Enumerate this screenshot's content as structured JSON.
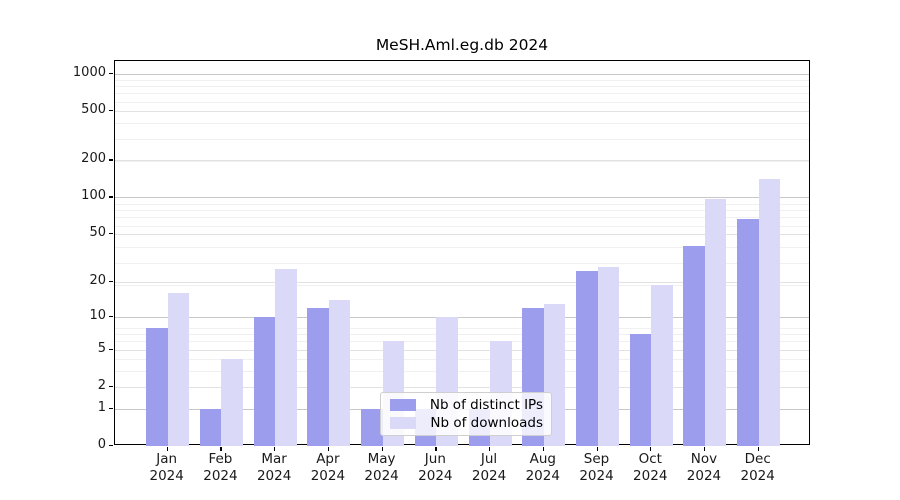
{
  "chart_data": {
    "type": "bar",
    "title": "MeSH.Aml.eg.db 2024",
    "categories": [
      "Jan",
      "Feb",
      "Mar",
      "Apr",
      "May",
      "Jun",
      "Jul",
      "Aug",
      "Sep",
      "Oct",
      "Nov",
      "Dec"
    ],
    "x_tick_second_line": "2024",
    "series": [
      {
        "name": "Nb of distinct IPs",
        "color": "#9d9dee",
        "values": [
          8,
          1,
          10,
          12,
          1,
          1,
          1,
          12,
          25,
          7,
          40,
          67
        ]
      },
      {
        "name": "Nb of downloads",
        "color": "#dadaf8",
        "values": [
          16,
          4,
          26,
          14,
          6,
          10,
          6,
          13,
          27,
          19,
          98,
          140
        ]
      }
    ],
    "yscale": "log1p",
    "yticks": [
      0,
      1,
      2,
      5,
      10,
      20,
      50,
      100,
      200,
      500,
      1000
    ],
    "ylim": [
      0,
      1270
    ],
    "grid": true,
    "legend_position": "inside-bottom-center",
    "colors": {
      "major_grid": "#c8c8c8",
      "tick_grid": "#e2e2e2",
      "minor_grid": "#f0f0f0",
      "axis": "#000000"
    }
  }
}
